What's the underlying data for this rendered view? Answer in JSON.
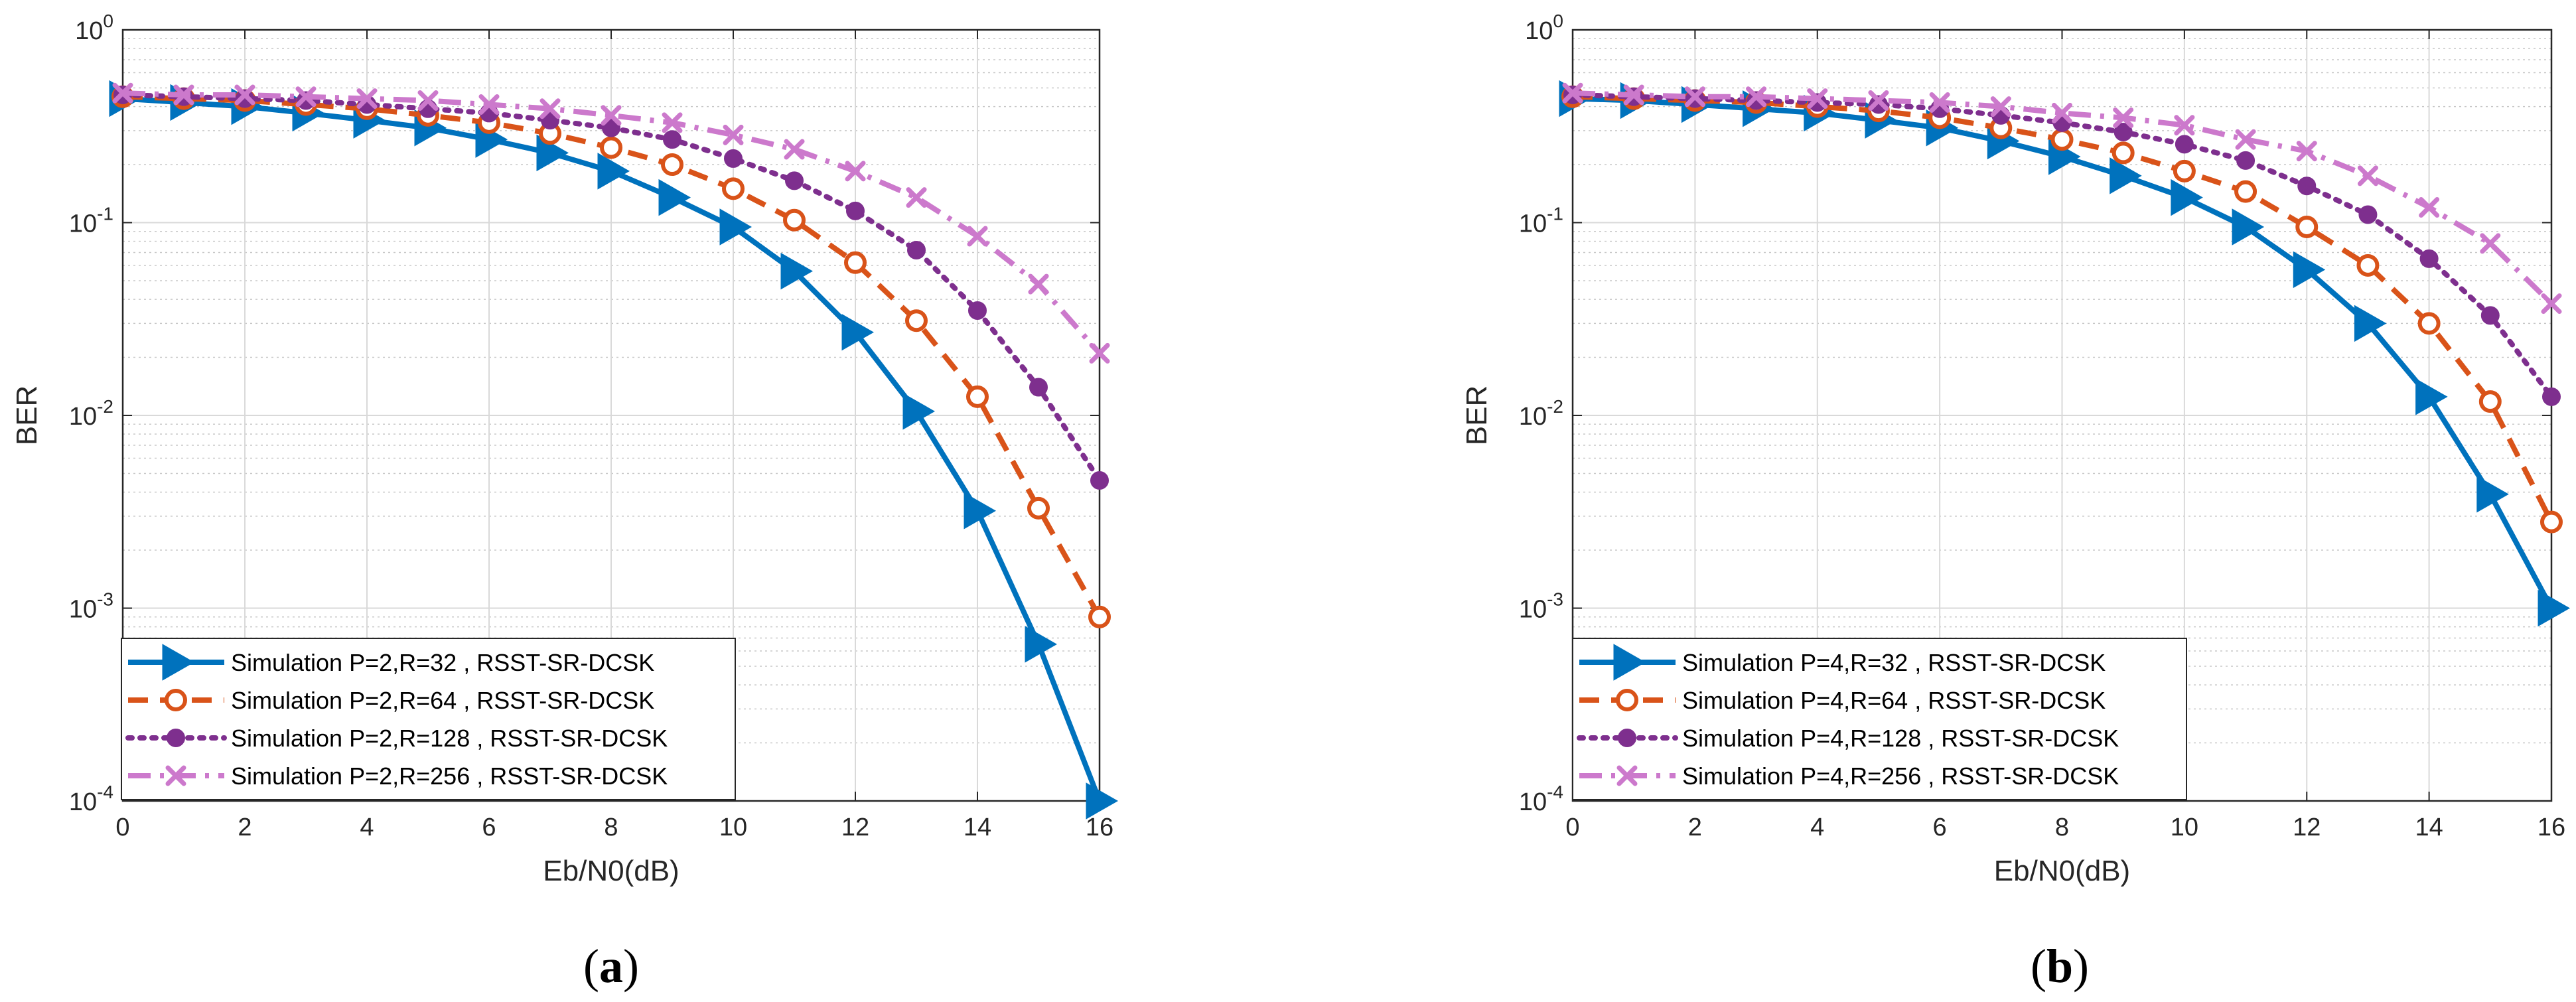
{
  "chart_data": [
    {
      "type": "line",
      "panel_label": {
        "open": "(",
        "letter": "a",
        "close": ")"
      },
      "xlabel": "Eb/N0(dB)",
      "ylabel": "BER",
      "xlim": [
        0,
        16
      ],
      "ylim": [
        0.0001,
        1
      ],
      "yscale": "log",
      "grid": true,
      "legend_position": "bottom-left",
      "x_ticks": [
        "0",
        "2",
        "4",
        "6",
        "8",
        "10",
        "12",
        "14",
        "16"
      ],
      "y_ticks": [
        {
          "base": "10",
          "exp": "0"
        },
        {
          "base": "10",
          "exp": "-1"
        },
        {
          "base": "10",
          "exp": "-2"
        },
        {
          "base": "10",
          "exp": "-3"
        },
        {
          "base": "10",
          "exp": "-4"
        }
      ],
      "x": [
        0,
        1,
        2,
        3,
        4,
        5,
        6,
        7,
        8,
        9,
        10,
        11,
        12,
        13,
        14,
        15,
        16
      ],
      "series": [
        {
          "name": "Simulation P=2,R=32 , RSST-SR-DCSK",
          "color": "#0072bd",
          "marker": "triangle-right",
          "dash": "solid",
          "values": [
            0.44,
            0.42,
            0.4,
            0.37,
            0.34,
            0.31,
            0.27,
            0.23,
            0.185,
            0.135,
            0.095,
            0.056,
            0.027,
            0.0105,
            0.0032,
            0.00065,
            0.0001
          ]
        },
        {
          "name": "Simulation P=2,R=64 , RSST-SR-DCSK",
          "color": "#d95319",
          "marker": "circle-open",
          "dash": "dashed",
          "values": [
            0.45,
            0.44,
            0.43,
            0.41,
            0.39,
            0.36,
            0.33,
            0.29,
            0.245,
            0.2,
            0.15,
            0.103,
            0.062,
            0.031,
            0.0125,
            0.0033,
            0.0009
          ]
        },
        {
          "name": "Simulation P=2,R=128 , RSST-SR-DCSK",
          "color": "#7e2f8e",
          "marker": "circle-filled",
          "dash": "dotted",
          "values": [
            0.46,
            0.45,
            0.44,
            0.43,
            0.41,
            0.39,
            0.37,
            0.34,
            0.31,
            0.27,
            0.215,
            0.165,
            0.115,
            0.072,
            0.035,
            0.014,
            0.0046
          ]
        },
        {
          "name": "Simulation P=2,R=256 , RSST-SR-DCSK",
          "color": "#cc79cc",
          "marker": "x",
          "dash": "dashdot",
          "values": [
            0.47,
            0.46,
            0.46,
            0.45,
            0.44,
            0.43,
            0.41,
            0.39,
            0.36,
            0.33,
            0.285,
            0.24,
            0.185,
            0.135,
            0.085,
            0.048,
            0.021
          ]
        }
      ]
    },
    {
      "type": "line",
      "panel_label": {
        "open": "(",
        "letter": "b",
        "close": ")"
      },
      "xlabel": "Eb/N0(dB)",
      "ylabel": "BER",
      "xlim": [
        0,
        16
      ],
      "ylim": [
        0.0001,
        1
      ],
      "yscale": "log",
      "grid": true,
      "legend_position": "bottom-left",
      "x_ticks": [
        "0",
        "2",
        "4",
        "6",
        "8",
        "10",
        "12",
        "14",
        "16"
      ],
      "y_ticks": [
        {
          "base": "10",
          "exp": "0"
        },
        {
          "base": "10",
          "exp": "-1"
        },
        {
          "base": "10",
          "exp": "-2"
        },
        {
          "base": "10",
          "exp": "-3"
        },
        {
          "base": "10",
          "exp": "-4"
        }
      ],
      "x": [
        0,
        1,
        2,
        3,
        4,
        5,
        6,
        7,
        8,
        9,
        10,
        11,
        12,
        13,
        14,
        15,
        16
      ],
      "series": [
        {
          "name": "Simulation P=4,R=32 , RSST-SR-DCSK",
          "color": "#0072bd",
          "marker": "triangle-right",
          "dash": "solid",
          "values": [
            0.44,
            0.43,
            0.41,
            0.39,
            0.37,
            0.34,
            0.31,
            0.265,
            0.22,
            0.175,
            0.135,
            0.095,
            0.057,
            0.03,
            0.0125,
            0.0039,
            0.001
          ]
        },
        {
          "name": "Simulation P=4,R=64 , RSST-SR-DCSK",
          "color": "#d95319",
          "marker": "circle-open",
          "dash": "dashed",
          "values": [
            0.45,
            0.44,
            0.43,
            0.42,
            0.4,
            0.38,
            0.35,
            0.31,
            0.27,
            0.23,
            0.185,
            0.145,
            0.095,
            0.06,
            0.03,
            0.0118,
            0.0028
          ]
        },
        {
          "name": "Simulation P=4,R=128 , RSST-SR-DCSK",
          "color": "#7e2f8e",
          "marker": "circle-filled",
          "dash": "dotted",
          "values": [
            0.46,
            0.45,
            0.44,
            0.43,
            0.42,
            0.41,
            0.39,
            0.36,
            0.33,
            0.295,
            0.255,
            0.21,
            0.155,
            0.11,
            0.065,
            0.033,
            0.0125
          ]
        },
        {
          "name": "Simulation P=4,R=256 , RSST-SR-DCSK",
          "color": "#cc79cc",
          "marker": "x",
          "dash": "dashdot",
          "values": [
            0.47,
            0.46,
            0.45,
            0.45,
            0.44,
            0.43,
            0.42,
            0.4,
            0.37,
            0.35,
            0.32,
            0.27,
            0.235,
            0.175,
            0.12,
            0.078,
            0.038
          ]
        }
      ]
    }
  ]
}
